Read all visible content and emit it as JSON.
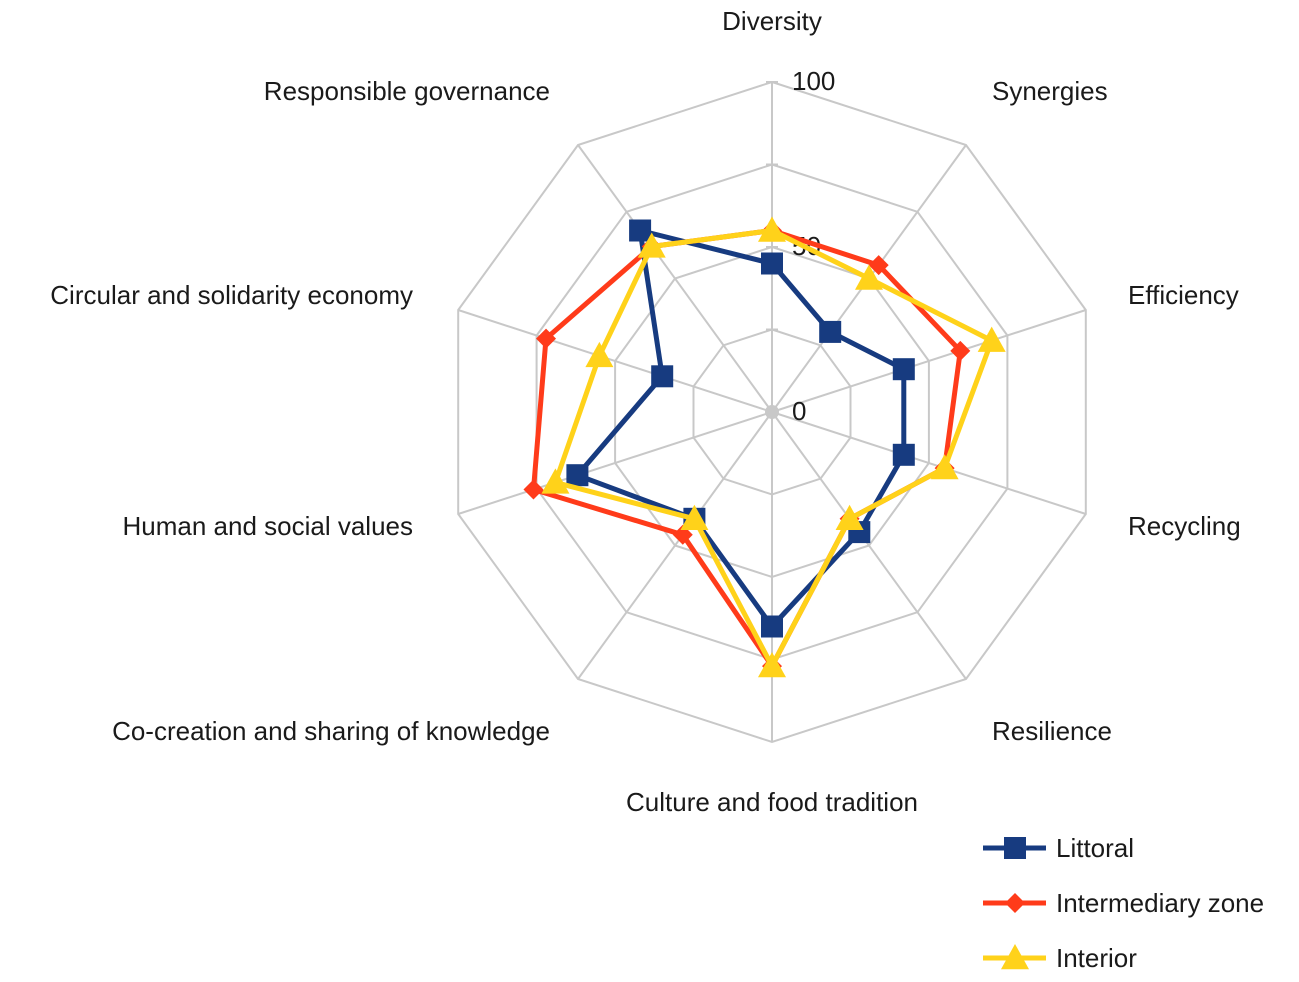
{
  "chart_data": {
    "type": "radar",
    "categories": [
      "Diversity",
      "Synergies",
      "Efficiency",
      "Recycling",
      "Resilience",
      "Culture and food tradition",
      "Co-creation and sharing of knowledge",
      "Human and social values",
      "Circular and solidarity economy",
      "Responsible governance"
    ],
    "rlim": [
      0,
      100
    ],
    "ticks": [
      {
        "value": 0,
        "label": "0"
      },
      {
        "value": 50,
        "label": "50"
      },
      {
        "value": 100,
        "label": "100"
      }
    ],
    "grid": true,
    "legend_position": "bottom-right",
    "series": [
      {
        "name": "Littoral",
        "color": "#173b80",
        "marker": "square",
        "values": [
          45,
          30,
          42,
          42,
          45,
          65,
          40,
          62,
          35,
          68
        ]
      },
      {
        "name": "Intermediary zone",
        "color": "#ff3b1a",
        "marker": "diamond",
        "values": [
          55,
          55,
          60,
          55,
          40,
          77,
          46,
          76,
          72,
          62
        ]
      },
      {
        "name": "Interior",
        "color": "#ffd21a",
        "marker": "triangle",
        "values": [
          55,
          50,
          70,
          55,
          40,
          77,
          40,
          69,
          55,
          62
        ]
      }
    ]
  }
}
